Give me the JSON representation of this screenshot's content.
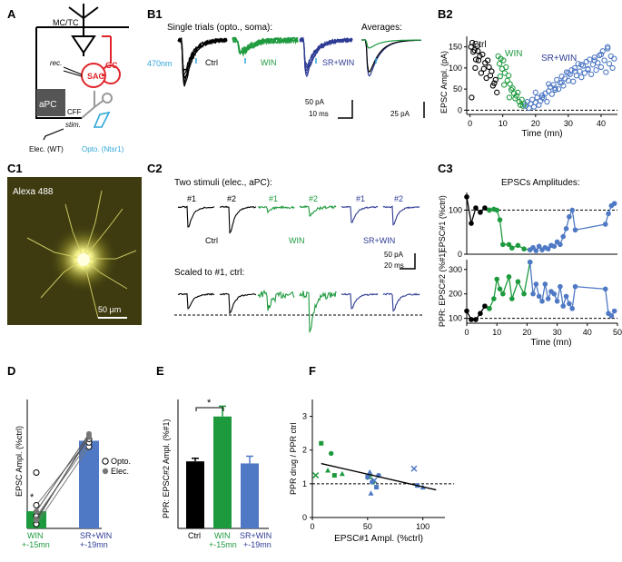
{
  "colors": {
    "ctrl": "#000000",
    "win": "#1e9a3e",
    "srwin": "#2e3b94",
    "srwin_light": "#4f79c4",
    "opto": "#2fa6d9",
    "red": "#e0252a",
    "gray": "#999999",
    "microscopy_bg": "#3e3b10",
    "microscopy_cell": "#f4f28a"
  },
  "panels": {
    "A": "A",
    "B1": "B1",
    "B2": "B2",
    "C1": "C1",
    "C2": "C2",
    "C3": "C3",
    "D": "D",
    "E": "E",
    "F": "F"
  },
  "panel_a": {
    "mctc": "MC/TC",
    "rec": "rec.",
    "sac": "SAC",
    "gc": "GC",
    "apc": "aPC",
    "cff": "CFF",
    "stim": "stim.",
    "elec": "Elec. (WT)",
    "opto": "Opto. (Ntsr1)"
  },
  "panel_b1": {
    "title": "Single trials (opto., soma):",
    "averages": "Averages:",
    "stim_label": "470nm",
    "ctrl": "Ctrl",
    "win": "WIN",
    "srwin": "SR+WIN",
    "scale_pa": "50 pA",
    "scale_ms": "10 ms",
    "scale_avg": "25 pA"
  },
  "panel_c1": {
    "dye": "Alexa 488",
    "scale": "50 μm"
  },
  "panel_c2": {
    "title_top": "Two stimuli (elec., aPC):",
    "title_bottom": "Scaled to #1, ctrl:",
    "s1": "#1",
    "s2": "#2",
    "ctrl": "Ctrl",
    "win": "WIN",
    "srwin": "SR+WIN",
    "scale_pa": "50 pA",
    "scale_ms": "20 ms"
  },
  "panel_c3": {
    "title": "EPSCs Amplitudes:"
  },
  "panel_d": {
    "legend_opto": "Opto.",
    "legend_elec": "Elec.",
    "star": "*",
    "cat_win": "WIN",
    "cat_win_time": "+-15mn",
    "cat_srwin": "SR+WIN",
    "cat_srwin_time": "+-19mn"
  },
  "panel_e": {
    "star": "*",
    "cat_ctrl": "Ctrl",
    "cat_win": "WIN",
    "cat_win_time": "+-15mn",
    "cat_srwin": "SR+WIN",
    "cat_srwin_time": "+-19mn"
  },
  "chart_data": [
    {
      "id": "B2",
      "type": "scatter",
      "xlabel": "Time (mn)",
      "ylabel": "EPSC Ampl. (pA)",
      "xlim": [
        -1,
        45
      ],
      "ylim": [
        -10,
        175
      ],
      "xticks": [
        0,
        10,
        20,
        30,
        40
      ],
      "yticks": [
        0,
        50,
        100,
        150
      ],
      "baseline": 0,
      "series": [
        {
          "name": "Ctrl",
          "color": "ctrl",
          "x": [
            0.3,
            0.7,
            1.0,
            1.4,
            1.8,
            2.2,
            2.6,
            3.0,
            3.4,
            3.8,
            4.2,
            4.6,
            5.0,
            5.4,
            5.8,
            6.2,
            6.6,
            7.0,
            7.4,
            7.8,
            8.2,
            0.5,
            1.6,
            2.4
          ],
          "y": [
            150,
            160,
            138,
            142,
            120,
            152,
            118,
            128,
            88,
            132,
            98,
            112,
            76,
            118,
            102,
            82,
            92,
            58,
            64,
            72,
            42,
            30,
            100,
            140
          ]
        },
        {
          "name": "WIN",
          "color": "win",
          "x": [
            8.6,
            9.0,
            9.4,
            9.8,
            10.2,
            10.6,
            11.0,
            11.4,
            11.8,
            12.2,
            12.6,
            13.0,
            13.4,
            13.8,
            14.2,
            14.6,
            15.0,
            15.4,
            15.8,
            16.2,
            16.6,
            9.2,
            10.4,
            12.0
          ],
          "y": [
            128,
            110,
            122,
            98,
            118,
            88,
            102,
            70,
            82,
            62,
            48,
            52,
            40,
            28,
            34,
            42,
            20,
            12,
            25,
            10,
            15,
            80,
            60,
            30
          ]
        },
        {
          "name": "SR+WIN",
          "color": "srwin_light",
          "x": [
            17,
            17.5,
            18,
            18.5,
            19,
            19.5,
            20,
            20.5,
            21,
            21.5,
            22,
            22.5,
            23,
            23.5,
            24,
            24.5,
            25,
            25.5,
            26,
            26.5,
            27,
            27.5,
            28,
            28.5,
            29,
            29.5,
            30,
            30.5,
            31,
            31.5,
            32,
            32.5,
            33,
            33.5,
            34,
            34.5,
            35,
            35.5,
            36,
            36.5,
            37,
            37.5,
            38,
            38.5,
            39,
            39.5,
            40,
            40.5,
            41,
            41.5,
            42,
            42.5,
            43,
            43.5,
            44,
            20,
            22,
            24,
            26,
            28,
            30,
            32,
            34,
            36,
            38,
            40,
            42
          ],
          "y": [
            10,
            20,
            5,
            15,
            25,
            8,
            18,
            30,
            12,
            22,
            35,
            28,
            40,
            20,
            45,
            55,
            38,
            60,
            48,
            72,
            50,
            65,
            80,
            58,
            75,
            90,
            70,
            85,
            95,
            68,
            100,
            82,
            110,
            92,
            78,
            105,
            88,
            115,
            98,
            120,
            85,
            108,
            125,
            95,
            112,
            130,
            102,
            140,
            118,
            90,
            150,
            110,
            128,
            100,
            122,
            42,
            30,
            62,
            52,
            66,
            88,
            92,
            108,
            96,
            118,
            132,
            146
          ]
        }
      ]
    },
    {
      "id": "C3-top",
      "type": "line",
      "xlabel": "",
      "ylabel": "EPSC#1 (%ctrl)",
      "xlim": [
        0,
        50
      ],
      "ylim": [
        0,
        140
      ],
      "yticks": [
        0,
        100
      ],
      "baseline": 100,
      "series": [
        {
          "name": "Ctrl",
          "color": "ctrl",
          "x": [
            0,
            1.5,
            3,
            4.5,
            6,
            7.5
          ],
          "y": [
            130,
            70,
            105,
            95,
            105,
            100
          ]
        },
        {
          "name": "WIN",
          "color": "win",
          "x": [
            7.5,
            9,
            10,
            11,
            12,
            14,
            15,
            17,
            19,
            21
          ],
          "y": [
            100,
            102,
            100,
            78,
            22,
            22,
            14,
            20,
            12,
            10
          ]
        },
        {
          "name": "SR+WIN",
          "color": "srwin_light",
          "x": [
            21,
            22,
            23,
            24,
            25,
            26,
            27,
            28,
            29,
            30,
            31,
            32,
            33,
            34,
            35,
            36,
            46,
            47,
            48,
            49
          ],
          "y": [
            10,
            15,
            8,
            18,
            10,
            15,
            12,
            20,
            18,
            28,
            22,
            40,
            58,
            85,
            100,
            55,
            68,
            92,
            110,
            115
          ]
        }
      ]
    },
    {
      "id": "C3-bottom",
      "type": "line",
      "xlabel": "Time (mn)",
      "ylabel": "PPR: EPSC#2 (%#1)",
      "xlim": [
        0,
        50
      ],
      "ylim": [
        80,
        340
      ],
      "xticks": [
        0,
        10,
        20,
        30,
        40,
        50
      ],
      "yticks": [
        100,
        200,
        300
      ],
      "baseline": 100,
      "series": [
        {
          "name": "Ctrl",
          "color": "ctrl",
          "x": [
            0,
            1.5,
            3,
            4.5,
            6,
            7.5
          ],
          "y": [
            130,
            95,
            95,
            120,
            150,
            140
          ]
        },
        {
          "name": "WIN",
          "color": "win",
          "x": [
            7.5,
            9,
            10,
            11,
            12,
            14,
            15,
            17,
            19,
            21
          ],
          "y": [
            140,
            180,
            260,
            220,
            200,
            270,
            180,
            250,
            200,
            330
          ]
        },
        {
          "name": "SR+WIN",
          "color": "srwin_light",
          "x": [
            21,
            22,
            23,
            24,
            25,
            26,
            27,
            28,
            29,
            30,
            31,
            32,
            33,
            34,
            35,
            36,
            46,
            47,
            48,
            49
          ],
          "y": [
            330,
            200,
            240,
            190,
            170,
            240,
            180,
            210,
            200,
            170,
            230,
            150,
            190,
            160,
            140,
            230,
            220,
            120,
            110,
            130
          ]
        }
      ]
    },
    {
      "id": "D",
      "type": "bar",
      "xlabel": "",
      "ylabel": "EPSC Ampl. (%ctrl)",
      "categories": [
        "WIN",
        "SR+WIN"
      ],
      "values": [
        20,
        102
      ],
      "bar_colors": [
        "win",
        "srwin_light"
      ],
      "ylim": [
        0,
        150
      ],
      "pairs_opto": [
        [
          5,
          95
        ],
        [
          14,
          100
        ],
        [
          27,
          104
        ]
      ],
      "pairs_elec": [
        [
          20,
          110
        ],
        [
          11,
          106
        ],
        [
          9,
          108
        ]
      ],
      "extra_points": [
        [
          0,
          65
        ]
      ]
    },
    {
      "id": "E",
      "type": "bar",
      "xlabel": "",
      "ylabel": "PPR: EPSC#2 Ampl. (%#1)",
      "categories": [
        "Ctrl",
        "WIN",
        "SR+WIN"
      ],
      "values": [
        130,
        217,
        126
      ],
      "errors": [
        6,
        20,
        14
      ],
      "bar_colors": [
        "ctrl",
        "win",
        "srwin_light"
      ],
      "ylim": [
        0,
        250
      ]
    },
    {
      "id": "F",
      "type": "scatter",
      "xlabel": "EPSC#1 Ampl. (%ctrl)",
      "ylabel": "PPR drug / PPR ctrl",
      "xlim": [
        0,
        120
      ],
      "ylim": [
        0,
        3.5
      ],
      "xticks": [
        0,
        50,
        100
      ],
      "yticks": [
        0,
        1,
        2,
        3
      ],
      "baseline": 1,
      "fit_line": {
        "x": [
          8,
          112
        ],
        "y": [
          1.6,
          0.82
        ]
      },
      "series": [
        {
          "name": "WIN",
          "color": "win",
          "x": [
            8,
            14,
            17,
            3,
            20,
            27,
            55,
            52
          ],
          "y": [
            2.2,
            1.4,
            1.9,
            1.25,
            1.25,
            1.3,
            1.05,
            1.2
          ]
        },
        {
          "name": "SR+WIN",
          "color": "srwin_light",
          "x": [
            50,
            52,
            54,
            56,
            58,
            53,
            60,
            92,
            95,
            100
          ],
          "y": [
            1.2,
            1.35,
            1.05,
            1.1,
            0.9,
            0.72,
            1.25,
            1.45,
            0.95,
            0.9
          ]
        }
      ]
    }
  ]
}
